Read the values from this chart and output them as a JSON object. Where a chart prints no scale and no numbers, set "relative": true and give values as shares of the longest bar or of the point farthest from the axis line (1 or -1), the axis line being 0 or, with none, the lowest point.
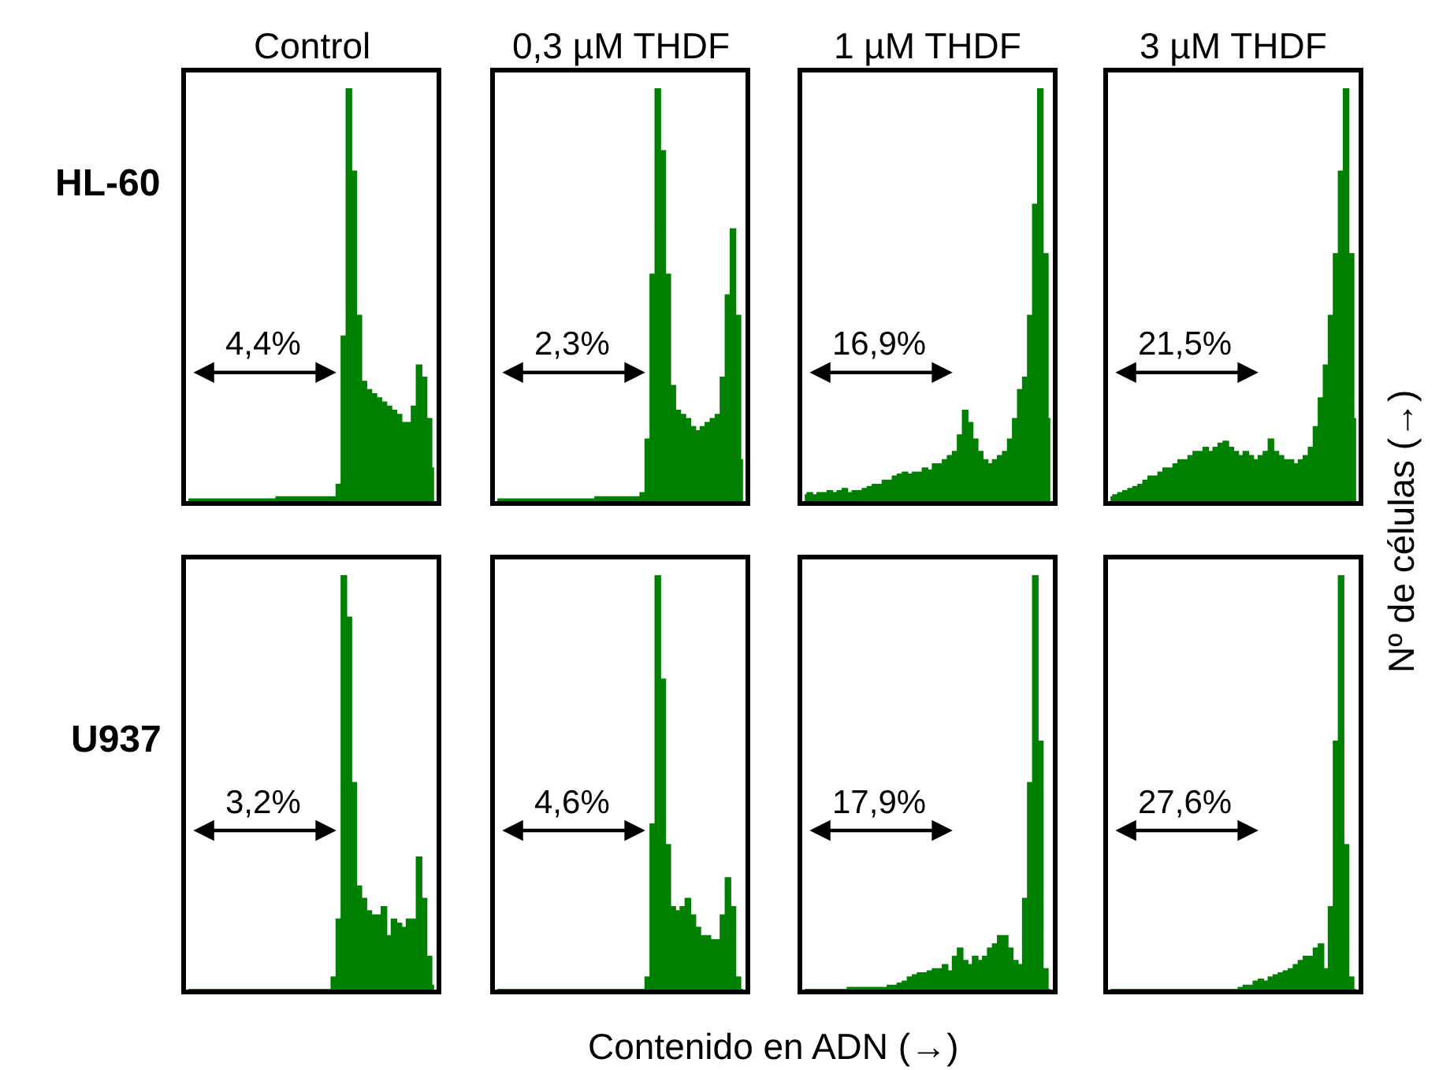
{
  "chart_data": [
    {
      "type": "area",
      "relative": true,
      "title": "Control",
      "ylabel": "HL-60",
      "annotations": [
        "4,4%"
      ],
      "color": "#008000",
      "categories": [
        null,
        null,
        null,
        null,
        null,
        null,
        null,
        null,
        null,
        null,
        null,
        null,
        null,
        null,
        null,
        null,
        null,
        null,
        null,
        null,
        null,
        null,
        null,
        null,
        null,
        null,
        null,
        null,
        null,
        null,
        null,
        null,
        null,
        null,
        null,
        null,
        null,
        null,
        null,
        null,
        null,
        null,
        null,
        null,
        null,
        null,
        null,
        null,
        null,
        null
      ],
      "values": [
        0.005,
        0.005,
        0.005,
        0.005,
        0.005,
        0.005,
        0.005,
        0.005,
        0.005,
        0.005,
        0.005,
        0.005,
        0.005,
        0.005,
        0.005,
        0.005,
        0.005,
        0.005,
        0.01,
        0.01,
        0.01,
        0.01,
        0.01,
        0.01,
        0.01,
        0.01,
        0.01,
        0.01,
        0.01,
        0.01,
        0.04,
        0.4,
        1.0,
        0.8,
        0.45,
        0.29,
        0.27,
        0.26,
        0.25,
        0.24,
        0.23,
        0.22,
        0.21,
        0.19,
        0.19,
        0.23,
        0.33,
        0.3,
        0.2,
        0.08
      ]
    },
    {
      "type": "area",
      "relative": true,
      "title": "0,3 µM THDF",
      "annotations": [
        "2,3%"
      ],
      "color": "#008000",
      "categories": [
        null,
        null,
        null,
        null,
        null,
        null,
        null,
        null,
        null,
        null,
        null,
        null,
        null,
        null,
        null,
        null,
        null,
        null,
        null,
        null,
        null,
        null,
        null,
        null,
        null,
        null,
        null,
        null,
        null,
        null,
        null,
        null,
        null,
        null,
        null,
        null,
        null,
        null,
        null,
        null,
        null,
        null,
        null,
        null,
        null,
        null,
        null,
        null,
        null,
        null
      ],
      "values": [
        0.005,
        0.005,
        0.005,
        0.005,
        0.005,
        0.005,
        0.005,
        0.005,
        0.005,
        0.005,
        0.005,
        0.005,
        0.005,
        0.005,
        0.005,
        0.005,
        0.005,
        0.005,
        0.005,
        0.005,
        0.01,
        0.01,
        0.01,
        0.01,
        0.01,
        0.01,
        0.01,
        0.01,
        0.01,
        0.02,
        0.15,
        0.55,
        1.0,
        0.85,
        0.55,
        0.28,
        0.22,
        0.21,
        0.2,
        0.18,
        0.17,
        0.18,
        0.19,
        0.2,
        0.21,
        0.3,
        0.5,
        0.66,
        0.45,
        0.1
      ]
    },
    {
      "type": "area",
      "relative": true,
      "title": "1 µM THDF",
      "annotations": [
        "16,9%"
      ],
      "color": "#008000",
      "categories": [
        null,
        null,
        null,
        null,
        null,
        null,
        null,
        null,
        null,
        null,
        null,
        null,
        null,
        null,
        null,
        null,
        null,
        null,
        null,
        null,
        null,
        null,
        null,
        null,
        null,
        null,
        null,
        null,
        null,
        null,
        null,
        null,
        null,
        null,
        null,
        null,
        null,
        null,
        null,
        null,
        null,
        null,
        null,
        null,
        null,
        null,
        null,
        null,
        null,
        null
      ],
      "values": [
        0.015,
        0.02,
        0.015,
        0.02,
        0.02,
        0.025,
        0.02,
        0.025,
        0.03,
        0.02,
        0.025,
        0.025,
        0.03,
        0.035,
        0.04,
        0.04,
        0.05,
        0.05,
        0.06,
        0.065,
        0.07,
        0.065,
        0.07,
        0.07,
        0.08,
        0.075,
        0.09,
        0.09,
        0.1,
        0.11,
        0.12,
        0.16,
        0.22,
        0.19,
        0.15,
        0.12,
        0.1,
        0.09,
        0.1,
        0.11,
        0.12,
        0.15,
        0.2,
        0.27,
        0.3,
        0.45,
        0.72,
        1.0,
        0.6,
        0.2
      ]
    },
    {
      "type": "area",
      "relative": true,
      "title": "3 µM THDF",
      "ylabel": "Nº de células (→)",
      "annotations": [
        "21,5%"
      ],
      "color": "#008000",
      "categories": [
        null,
        null,
        null,
        null,
        null,
        null,
        null,
        null,
        null,
        null,
        null,
        null,
        null,
        null,
        null,
        null,
        null,
        null,
        null,
        null,
        null,
        null,
        null,
        null,
        null,
        null,
        null,
        null,
        null,
        null,
        null,
        null,
        null,
        null,
        null,
        null,
        null,
        null,
        null,
        null,
        null,
        null,
        null,
        null,
        null,
        null,
        null,
        null,
        null,
        null
      ],
      "values": [
        0.01,
        0.015,
        0.02,
        0.025,
        0.03,
        0.035,
        0.04,
        0.05,
        0.06,
        0.06,
        0.07,
        0.08,
        0.08,
        0.09,
        0.1,
        0.1,
        0.11,
        0.12,
        0.12,
        0.13,
        0.12,
        0.13,
        0.14,
        0.145,
        0.13,
        0.12,
        0.11,
        0.12,
        0.11,
        0.1,
        0.11,
        0.12,
        0.15,
        0.12,
        0.11,
        0.1,
        0.1,
        0.09,
        0.1,
        0.11,
        0.13,
        0.18,
        0.25,
        0.33,
        0.45,
        0.6,
        0.8,
        1.0,
        0.6,
        0.2
      ]
    },
    {
      "type": "area",
      "relative": true,
      "ylabel": "U937",
      "annotations": [
        "3,2%"
      ],
      "color": "#008000",
      "categories": [
        null,
        null,
        null,
        null,
        null,
        null,
        null,
        null,
        null,
        null,
        null,
        null,
        null,
        null,
        null,
        null,
        null,
        null,
        null,
        null,
        null,
        null,
        null,
        null,
        null,
        null,
        null,
        null,
        null,
        null,
        null,
        null,
        null,
        null,
        null,
        null,
        null,
        null,
        null,
        null,
        null,
        null,
        null,
        null,
        null,
        null,
        null,
        null,
        null,
        null
      ],
      "values": [
        0,
        0,
        0,
        0,
        0,
        0,
        0,
        0,
        0,
        0,
        0,
        0,
        0,
        0,
        0,
        0,
        0,
        0,
        0,
        0,
        0,
        0,
        0,
        0,
        0,
        0,
        0,
        0,
        0,
        0.03,
        0.17,
        1.0,
        0.9,
        0.5,
        0.25,
        0.22,
        0.19,
        0.18,
        0.18,
        0.2,
        0.13,
        0.17,
        0.16,
        0.15,
        0.17,
        0.17,
        0.32,
        0.22,
        0.08,
        0.01
      ]
    },
    {
      "type": "area",
      "relative": true,
      "xlabel": "Contenido en ADN (→)",
      "annotations": [
        "4,6%"
      ],
      "color": "#008000",
      "categories": [
        null,
        null,
        null,
        null,
        null,
        null,
        null,
        null,
        null,
        null,
        null,
        null,
        null,
        null,
        null,
        null,
        null,
        null,
        null,
        null,
        null,
        null,
        null,
        null,
        null,
        null,
        null,
        null,
        null,
        null,
        null,
        null,
        null,
        null,
        null,
        null,
        null,
        null,
        null,
        null,
        null,
        null,
        null,
        null,
        null,
        null,
        null,
        null,
        null,
        null
      ],
      "values": [
        0,
        0,
        0,
        0,
        0,
        0,
        0,
        0,
        0,
        0,
        0,
        0,
        0,
        0,
        0,
        0,
        0,
        0,
        0,
        0,
        0,
        0,
        0,
        0,
        0,
        0,
        0,
        0,
        0,
        0,
        0.03,
        0.4,
        1.0,
        0.75,
        0.35,
        0.2,
        0.19,
        0.2,
        0.22,
        0.18,
        0.15,
        0.13,
        0.13,
        0.12,
        0.12,
        0.18,
        0.27,
        0.2,
        0.03,
        0
      ]
    },
    {
      "type": "area",
      "relative": true,
      "annotations": [
        "17,9%"
      ],
      "color": "#008000",
      "categories": [
        null,
        null,
        null,
        null,
        null,
        null,
        null,
        null,
        null,
        null,
        null,
        null,
        null,
        null,
        null,
        null,
        null,
        null,
        null,
        null,
        null,
        null,
        null,
        null,
        null,
        null,
        null,
        null,
        null,
        null,
        null,
        null,
        null,
        null,
        null,
        null,
        null,
        null,
        null,
        null,
        null,
        null,
        null,
        null,
        null,
        null,
        null,
        null,
        null,
        null
      ],
      "values": [
        0,
        0,
        0,
        0,
        0,
        0,
        0,
        0,
        0,
        0.005,
        0.005,
        0.005,
        0.005,
        0.005,
        0.005,
        0.005,
        0.005,
        0.01,
        0.01,
        0.015,
        0.02,
        0.03,
        0.035,
        0.04,
        0.04,
        0.045,
        0.05,
        0.05,
        0.06,
        0.045,
        0.08,
        0.1,
        0.07,
        0.06,
        0.08,
        0.07,
        0.08,
        0.1,
        0.11,
        0.13,
        0.13,
        0.1,
        0.07,
        0.06,
        0.22,
        0.5,
        1.0,
        0.6,
        0.05,
        0
      ]
    },
    {
      "type": "area",
      "relative": true,
      "annotations": [
        "27,6%"
      ],
      "color": "#008000",
      "categories": [
        null,
        null,
        null,
        null,
        null,
        null,
        null,
        null,
        null,
        null,
        null,
        null,
        null,
        null,
        null,
        null,
        null,
        null,
        null,
        null,
        null,
        null,
        null,
        null,
        null,
        null,
        null,
        null,
        null,
        null,
        null,
        null,
        null,
        null,
        null,
        null,
        null,
        null,
        null,
        null,
        null,
        null,
        null,
        null,
        null,
        null,
        null,
        null,
        null,
        null
      ],
      "values": [
        0,
        0,
        0,
        0,
        0,
        0,
        0,
        0,
        0,
        0,
        0,
        0,
        0,
        0,
        0,
        0,
        0,
        0,
        0,
        0,
        0,
        0,
        0,
        0,
        0,
        0,
        0.005,
        0.01,
        0.01,
        0.02,
        0.025,
        0.02,
        0.03,
        0.035,
        0.04,
        0.045,
        0.05,
        0.06,
        0.07,
        0.08,
        0.08,
        0.1,
        0.11,
        0.05,
        0.2,
        0.6,
        1.0,
        0.35,
        0.03,
        0
      ]
    }
  ]
}
